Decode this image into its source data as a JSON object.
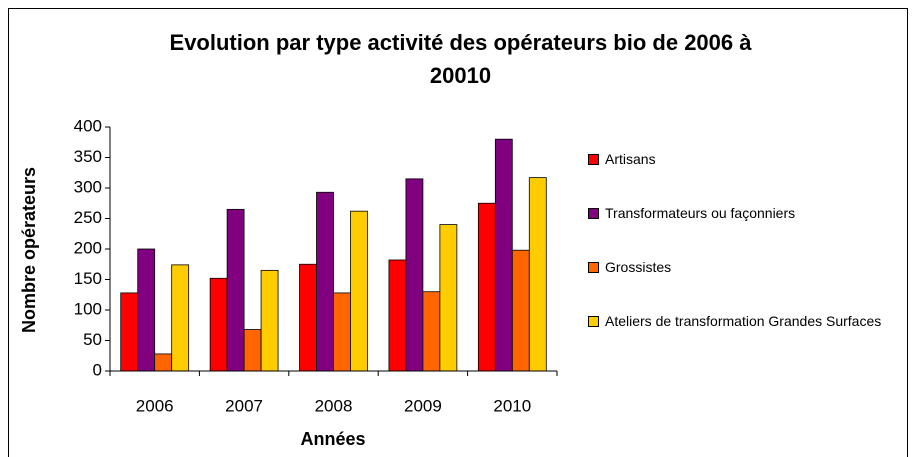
{
  "chart_data": {
    "type": "bar",
    "title": "Evolution par type activité des opérateurs bio de 2006 à 20010",
    "x_label": "Années",
    "y_label": "Nombre opérateurs",
    "categories": [
      "2006",
      "2007",
      "2008",
      "2009",
      "2010"
    ],
    "series": [
      {
        "name": "Artisans",
        "color": "#ff0000",
        "values": [
          128,
          152,
          175,
          182,
          275
        ]
      },
      {
        "name": "Transformateurs ou façonniers",
        "color": "#800080",
        "values": [
          200,
          265,
          293,
          315,
          380
        ]
      },
      {
        "name": "Grossistes",
        "color": "#ff6600",
        "values": [
          28,
          68,
          128,
          130,
          198
        ]
      },
      {
        "name": "Ateliers de transformation Grandes Surfaces",
        "color": "#ffcc00",
        "values": [
          174,
          165,
          262,
          240,
          317
        ]
      }
    ],
    "ylim": [
      0,
      400
    ],
    "yticks": [
      0,
      50,
      100,
      150,
      200,
      250,
      300,
      350,
      400
    ],
    "legend": "right"
  }
}
